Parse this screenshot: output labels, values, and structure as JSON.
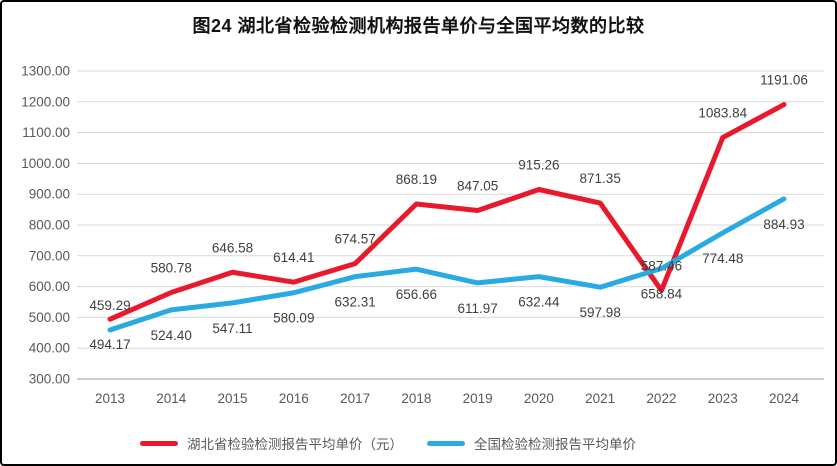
{
  "title": "图24 湖北省检验检测机构报告单价与全国平均数的比较",
  "colors": {
    "hubei_red": "#e8192d",
    "national_blue": "#29abe2",
    "gridline": "#d9d9d9",
    "axis_line": "#bdbdbd",
    "axis_text": "#595959",
    "data_label_text": "#3f3f3f",
    "title_text": "#111111",
    "frame_border": "#000000"
  },
  "legend": [
    {
      "label": "湖北省检验检测报告平均单价（元）",
      "color": "#e8192d"
    },
    {
      "label": "全国检验检测报告平均单价",
      "color": "#29abe2"
    }
  ],
  "chart_data": {
    "type": "line",
    "categories": [
      "2013",
      "2014",
      "2015",
      "2016",
      "2017",
      "2018",
      "2019",
      "2020",
      "2021",
      "2022",
      "2023",
      "2024"
    ],
    "series": [
      {
        "name": "湖北省检验检测报告平均单价（元）",
        "color": "#e8192d",
        "label_position": "above",
        "values": [
          494.17,
          580.78,
          646.58,
          614.41,
          674.57,
          868.19,
          847.05,
          915.26,
          871.35,
          587.46,
          1083.84,
          1191.06
        ]
      },
      {
        "name": "全国检验检测报告平均单价",
        "color": "#29abe2",
        "label_position": "below",
        "values": [
          459.29,
          524.4,
          547.11,
          580.09,
          632.31,
          656.66,
          611.97,
          632.44,
          597.98,
          658.84,
          774.48,
          884.93
        ]
      }
    ],
    "title": "图24 湖北省检验检测机构报告单价与全国平均数的比较",
    "xlabel": "",
    "ylabel": "",
    "ylim": [
      300,
      1300
    ],
    "ytick_step": 100,
    "ytick_decimals": 2,
    "grid": true,
    "legend_position": "bottom"
  }
}
